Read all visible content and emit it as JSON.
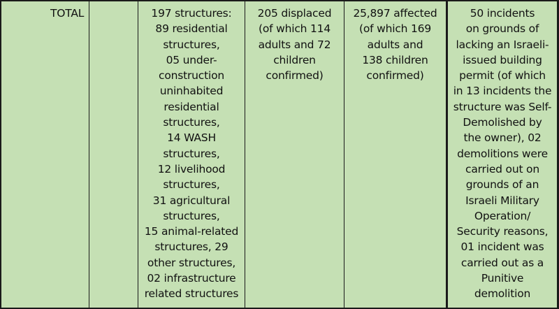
{
  "row": {
    "label": "TOTAL",
    "structures": [
      "197 structures:",
      "89 residential",
      "structures,",
      "05 under-",
      "construction",
      "uninhabited",
      "residential",
      "structures,",
      "14 WASH",
      "structures,",
      "12 livelihood",
      "structures,",
      "31 agricultural",
      "structures,",
      "15 animal-related",
      "structures, 29",
      "other structures,",
      "02 infrastructure",
      "related structures"
    ],
    "displaced": [
      "205 displaced",
      "(of which 114",
      "adults and 72",
      "children",
      "confirmed)"
    ],
    "affected": [
      "25,897 affected",
      "(of which 169",
      "adults and",
      "138 children",
      "confirmed)"
    ],
    "incidents": [
      "50 incidents",
      "on grounds of",
      "lacking an Israeli-",
      "issued building",
      "permit (of which",
      "in 13 incidents the",
      "structure was Self-",
      "Demolished by",
      "the owner), 02",
      "demolitions were",
      "carried out on",
      "grounds of an",
      "Israeli Military",
      "Operation/",
      "Security reasons,",
      "01 incident was",
      "carried out as a",
      "Punitive",
      "demolition"
    ]
  }
}
